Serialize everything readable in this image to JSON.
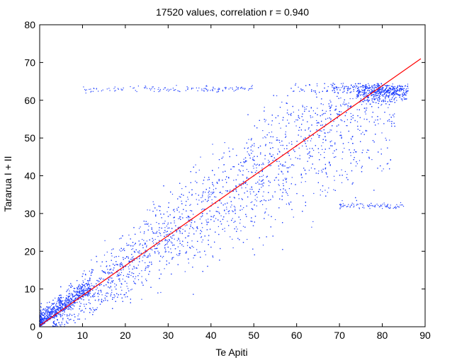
{
  "chart_data": {
    "type": "scatter",
    "title": "17520 values, correlation r = 0.940",
    "xlabel": "Te Apiti",
    "ylabel": "Tararua I + II",
    "xlim": [
      0,
      90
    ],
    "ylim": [
      0,
      80
    ],
    "xticks": [
      "0",
      "10",
      "20",
      "30",
      "40",
      "50",
      "60",
      "70",
      "80",
      "90"
    ],
    "yticks": [
      "0",
      "10",
      "20",
      "30",
      "40",
      "50",
      "60",
      "70",
      "80"
    ],
    "grid": false,
    "legend": "none",
    "point_count": 17520,
    "correlation_r": 0.94,
    "colors": {
      "points": "#1f3fff",
      "fit_line": "#ff0000",
      "axes": "#000000"
    },
    "fit_line": {
      "x": [
        0,
        89
      ],
      "y": [
        0.3,
        71
      ]
    },
    "series": [
      {
        "x": [
          1,
          2,
          3,
          4,
          5,
          6,
          7,
          8,
          9,
          10,
          12,
          14,
          16,
          18,
          20,
          22,
          25,
          28,
          30,
          32,
          35,
          38,
          40,
          42,
          45,
          48,
          50,
          52,
          55,
          58,
          60,
          62,
          65,
          68,
          70,
          72,
          75,
          78,
          80,
          82,
          84,
          86
        ],
        "y": [
          1,
          2,
          2.5,
          3.5,
          4.5,
          5,
          5.5,
          7,
          7.5,
          8,
          10,
          11,
          13,
          14.5,
          16,
          18,
          20,
          22,
          24,
          25.5,
          28,
          30,
          32,
          33.5,
          36,
          38,
          40,
          41.5,
          44,
          46,
          48,
          50,
          52,
          55,
          57,
          58.5,
          60,
          61.5,
          63,
          63,
          63,
          62.5
        ]
      }
    ]
  }
}
